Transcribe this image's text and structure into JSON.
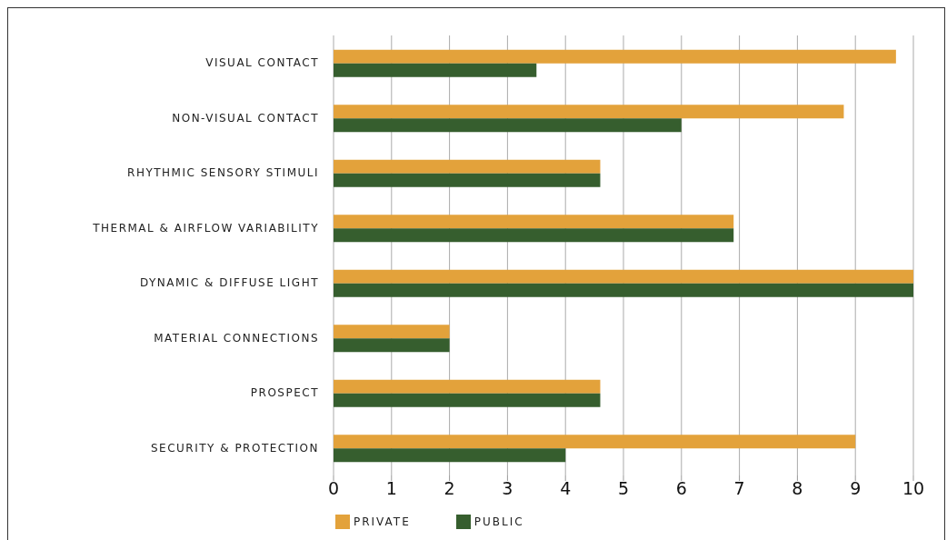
{
  "chart_data": {
    "type": "bar",
    "orientation": "horizontal",
    "categories": [
      "VISUAL CONTACT",
      "NON-VISUAL CONTACT",
      "RHYTHMIC SENSORY STIMULI",
      "THERMAL & AIRFLOW VARIABILITY",
      "DYNAMIC & DIFFUSE LIGHT",
      "MATERIAL CONNECTIONS",
      "PROSPECT",
      "SECURITY & PROTECTION"
    ],
    "series": [
      {
        "name": "PRIVATE",
        "color": "#e3a23b",
        "values": [
          9.7,
          8.8,
          4.6,
          6.9,
          10,
          2,
          4.6,
          9
        ]
      },
      {
        "name": "PUBLIC",
        "color": "#365e2e",
        "values": [
          3.5,
          6,
          4.6,
          6.9,
          10,
          2,
          4.6,
          4
        ]
      }
    ],
    "xlim": [
      0,
      10
    ],
    "xticks": [
      0,
      1,
      2,
      3,
      4,
      5,
      6,
      7,
      8,
      9,
      10
    ],
    "grid": "x",
    "legend": "bottom"
  }
}
